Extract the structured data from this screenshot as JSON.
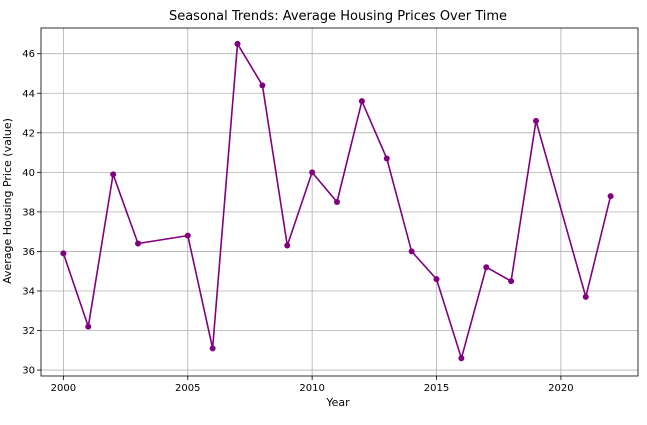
{
  "chart_data": {
    "type": "line",
    "title": "Seasonal Trends: Average Housing Prices Over Time",
    "xlabel": "Year",
    "ylabel": "Average Housing Price (value)",
    "xlim": [
      1999.1,
      2023.1
    ],
    "ylim": [
      29.7,
      47.3
    ],
    "xticks": [
      2000,
      2005,
      2010,
      2015,
      2020
    ],
    "yticks": [
      30,
      32,
      34,
      36,
      38,
      40,
      42,
      44,
      46
    ],
    "grid": true,
    "color": "#800080",
    "marker": "circle",
    "x": [
      2000,
      2001,
      2002,
      2003,
      2005,
      2006,
      2007,
      2008,
      2009,
      2010,
      2011,
      2012,
      2013,
      2014,
      2015,
      2016,
      2017,
      2018,
      2019,
      2021,
      2022
    ],
    "y": [
      35.9,
      32.2,
      39.9,
      36.4,
      36.8,
      31.1,
      46.5,
      44.4,
      36.3,
      40.0,
      38.5,
      43.6,
      40.7,
      36.0,
      34.6,
      30.6,
      35.2,
      34.5,
      42.6,
      33.7,
      38.8
    ]
  }
}
